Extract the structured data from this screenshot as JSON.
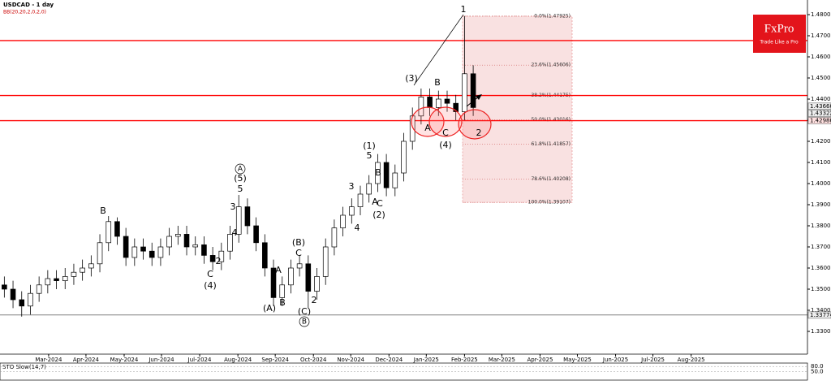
{
  "chart_data": {
    "type": "candlestick",
    "title": "USDCAD - 1 day",
    "subtitle": "BB(20,20,2,0,2,0)",
    "x": [
      0,
      1,
      2,
      3,
      4,
      5,
      6,
      7,
      8,
      9,
      10,
      11,
      12,
      13,
      14,
      15,
      16,
      17,
      18,
      19,
      20,
      21,
      22,
      23,
      24,
      25,
      26,
      27,
      28,
      29,
      30,
      31,
      32,
      33,
      34,
      35,
      36,
      37,
      38,
      39,
      40,
      41,
      42,
      43,
      44,
      45,
      46,
      47,
      48,
      49,
      50,
      51,
      52,
      53,
      54
    ],
    "open": [
      1.352,
      1.35,
      1.345,
      1.342,
      1.348,
      1.352,
      1.355,
      1.354,
      1.356,
      1.358,
      1.36,
      1.362,
      1.372,
      1.382,
      1.375,
      1.365,
      1.37,
      1.368,
      1.365,
      1.37,
      1.375,
      1.376,
      1.37,
      1.371,
      1.366,
      1.363,
      1.368,
      1.376,
      1.389,
      1.38,
      1.372,
      1.36,
      1.346,
      1.352,
      1.36,
      1.362,
      1.349,
      1.356,
      1.37,
      1.379,
      1.385,
      1.389,
      1.395,
      1.4,
      1.41,
      1.398,
      1.405,
      1.42,
      1.432,
      1.441,
      1.436,
      1.44,
      1.438,
      1.434,
      1.452
    ],
    "high": [
      1.356,
      1.354,
      1.349,
      1.352,
      1.356,
      1.359,
      1.359,
      1.36,
      1.362,
      1.364,
      1.366,
      1.376,
      1.3846,
      1.384,
      1.379,
      1.374,
      1.374,
      1.372,
      1.374,
      1.379,
      1.38,
      1.38,
      1.375,
      1.375,
      1.37,
      1.372,
      1.38,
      1.3946,
      1.393,
      1.384,
      1.376,
      1.364,
      1.356,
      1.364,
      1.366,
      1.366,
      1.36,
      1.374,
      1.383,
      1.389,
      1.393,
      1.399,
      1.404,
      1.414,
      1.414,
      1.409,
      1.424,
      1.436,
      1.445,
      1.445,
      1.444,
      1.444,
      1.442,
      1.4793,
      1.456
    ],
    "low": [
      1.346,
      1.341,
      1.337,
      1.338,
      1.344,
      1.348,
      1.35,
      1.35,
      1.352,
      1.354,
      1.356,
      1.358,
      1.368,
      1.371,
      1.361,
      1.361,
      1.364,
      1.361,
      1.361,
      1.366,
      1.371,
      1.366,
      1.366,
      1.362,
      1.359,
      1.359,
      1.364,
      1.372,
      1.376,
      1.368,
      1.356,
      1.342,
      1.342,
      1.348,
      1.356,
      1.341,
      1.345,
      1.352,
      1.366,
      1.375,
      1.381,
      1.385,
      1.391,
      1.396,
      1.394,
      1.394,
      1.401,
      1.416,
      1.428,
      1.432,
      1.432,
      1.434,
      1.43,
      1.43,
      1.432
    ],
    "close": [
      1.35,
      1.345,
      1.342,
      1.348,
      1.352,
      1.355,
      1.354,
      1.356,
      1.358,
      1.36,
      1.362,
      1.372,
      1.382,
      1.375,
      1.365,
      1.37,
      1.368,
      1.365,
      1.37,
      1.375,
      1.376,
      1.37,
      1.371,
      1.366,
      1.363,
      1.368,
      1.376,
      1.389,
      1.38,
      1.372,
      1.36,
      1.346,
      1.352,
      1.36,
      1.362,
      1.349,
      1.356,
      1.37,
      1.379,
      1.385,
      1.389,
      1.395,
      1.4,
      1.41,
      1.398,
      1.405,
      1.42,
      1.432,
      1.441,
      1.436,
      1.44,
      1.438,
      1.434,
      1.452,
      1.436
    ],
    "xlim": [
      -0.5,
      92.5
    ],
    "ylim": [
      1.31923,
      1.48692
    ],
    "xticks": [
      {
        "value": 5.1,
        "label": "Mar-2024"
      },
      {
        "value": 9.4,
        "label": "Apr-2024"
      },
      {
        "value": 13.8,
        "label": "May-2024"
      },
      {
        "value": 18.1,
        "label": "Jun-2024"
      },
      {
        "value": 22.5,
        "label": "Jul-2024"
      },
      {
        "value": 26.9,
        "label": "Aug-2024"
      },
      {
        "value": 31.2,
        "label": "Sep-2024"
      },
      {
        "value": 35.6,
        "label": "Oct-2024"
      },
      {
        "value": 39.9,
        "label": "Nov-2024"
      },
      {
        "value": 44.3,
        "label": "Dec-2024"
      },
      {
        "value": 48.6,
        "label": "Jan-2025"
      },
      {
        "value": 53.0,
        "label": "Feb-2025"
      },
      {
        "value": 57.3,
        "label": "Mar-2025"
      },
      {
        "value": 61.7,
        "label": "Apr-2025"
      },
      {
        "value": 66.0,
        "label": "May-2025"
      },
      {
        "value": 70.4,
        "label": "Jun-2025"
      },
      {
        "value": 74.7,
        "label": "Jul-2025"
      },
      {
        "value": 79.1,
        "label": "Aug-2025"
      }
    ],
    "yticks": [
      {
        "value": 1.33,
        "label": "1.33000"
      },
      {
        "value": 1.34,
        "label": "1.34000"
      },
      {
        "value": 1.35,
        "label": "1.35000"
      },
      {
        "value": 1.36,
        "label": "1.36000"
      },
      {
        "value": 1.37,
        "label": "1.37000"
      },
      {
        "value": 1.38,
        "label": "1.38000"
      },
      {
        "value": 1.39,
        "label": "1.39000"
      },
      {
        "value": 1.4,
        "label": "1.40000"
      },
      {
        "value": 1.41,
        "label": "1.41000"
      },
      {
        "value": 1.42,
        "label": "1.42000"
      },
      {
        "value": 1.43,
        "label": "1.43000"
      },
      {
        "value": 1.44,
        "label": "1.44000"
      },
      {
        "value": 1.45,
        "label": "1.45000"
      },
      {
        "value": 1.46,
        "label": "1.46000"
      },
      {
        "value": 1.47,
        "label": "1.47000"
      },
      {
        "value": 1.48,
        "label": "1.48000"
      }
    ],
    "hlines": [
      {
        "value": 1.4677,
        "color": "#ff0000"
      },
      {
        "value": 1.4417,
        "color": "#ff0000"
      },
      {
        "value": 1.4298,
        "color": "#ff0000"
      },
      {
        "value": 1.33774,
        "color": "#000000"
      }
    ],
    "price_labels": [
      {
        "value": 1.4366,
        "label": "1.43660"
      },
      {
        "value": 1.43322,
        "label": "1.43322"
      },
      {
        "value": 1.4298,
        "label": "1.42980"
      },
      {
        "value": 1.33774,
        "label": "1.33774"
      }
    ],
    "fib_levels": [
      {
        "value": 1.47925,
        "label": "0.0%(1.47925)"
      },
      {
        "value": 1.45606,
        "label": "23.6%(1.45606)"
      },
      {
        "value": 1.44175,
        "label": "38.2%(1.44175)"
      },
      {
        "value": 1.43016,
        "label": "50.0%(1.43016)"
      },
      {
        "value": 1.41857,
        "label": "61.8%(1.41857)"
      },
      {
        "value": 1.40208,
        "label": "78.6%(1.40208)"
      },
      {
        "value": 1.39107,
        "label": "100.0%(1.39107)"
      }
    ],
    "annotations": [
      "1",
      "(3)",
      "B",
      "A",
      "C",
      "(4)",
      "2",
      "(1)",
      "5",
      "B",
      "3",
      "A",
      "C",
      "(2)",
      "4",
      "A",
      "(5)",
      "5",
      "3",
      "4",
      "B",
      "2",
      "C",
      "(4)",
      "(B)",
      "C",
      "A",
      "B",
      "(A)",
      "2",
      "(C)",
      "B"
    ],
    "indicator": {
      "name": "STO Slow(14,7)",
      "levels": [
        {
          "value": 80,
          "label": "80.0"
        },
        {
          "value": 50,
          "label": "50.0"
        }
      ]
    },
    "logo": {
      "title": "FxPro",
      "tagline": "Trade Like a Pro"
    }
  }
}
